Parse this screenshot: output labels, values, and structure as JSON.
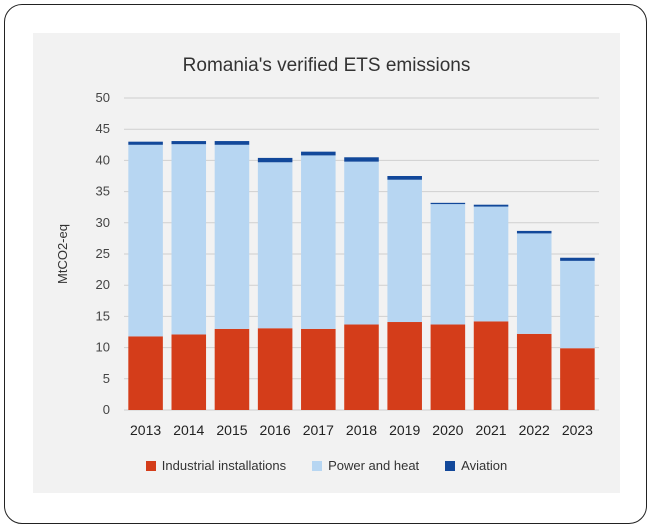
{
  "chart_data": {
    "type": "bar",
    "stacked": true,
    "title": "Romania's verified ETS emissions",
    "ylabel": "MtCO2-eq",
    "xlabel": "",
    "ylim": [
      0,
      50
    ],
    "yticks": [
      0,
      5,
      10,
      15,
      20,
      25,
      30,
      35,
      40,
      45,
      50
    ],
    "grid": true,
    "legend_position": "bottom",
    "categories": [
      "2013",
      "2014",
      "2015",
      "2016",
      "2017",
      "2018",
      "2019",
      "2020",
      "2021",
      "2022",
      "2023"
    ],
    "series": [
      {
        "name": "Industrial installations",
        "color": "#d43d1a",
        "values": [
          11.8,
          12.1,
          13.0,
          13.1,
          13.0,
          13.7,
          14.1,
          13.7,
          14.2,
          12.2,
          9.9
        ]
      },
      {
        "name": "Power and heat",
        "color": "#b7d6f2",
        "values": [
          30.7,
          30.5,
          29.5,
          26.6,
          27.8,
          26.1,
          22.8,
          19.3,
          18.4,
          16.1,
          14.0
        ]
      },
      {
        "name": "Aviation",
        "color": "#12489a",
        "values": [
          0.5,
          0.5,
          0.6,
          0.7,
          0.6,
          0.7,
          0.6,
          0.2,
          0.3,
          0.4,
          0.5
        ]
      }
    ]
  }
}
